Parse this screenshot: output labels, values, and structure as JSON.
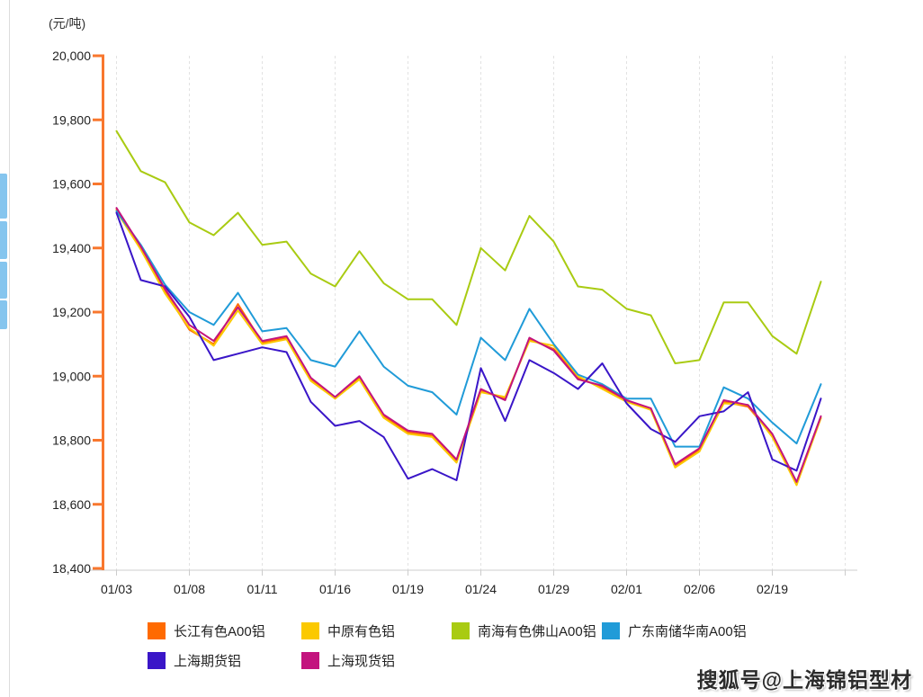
{
  "page": {
    "unit_label": "(元/吨)",
    "watermark": "搜狐号@上海锦铝型材"
  },
  "chart_data": {
    "type": "line",
    "title": "",
    "ylabel": "(元/吨)",
    "ylim": [
      18400,
      20000
    ],
    "ytick_step": 200,
    "ytick_labels": [
      "20,000",
      "19,800",
      "19,600",
      "19,400",
      "19,200",
      "19,000",
      "18,800",
      "18,600",
      "18,400"
    ],
    "yticks": [
      20000,
      19800,
      19600,
      19400,
      19200,
      19000,
      18800,
      18600,
      18400
    ],
    "grid": "vertical-dashed",
    "legend_position": "bottom-left",
    "axis_color": "#f8772e",
    "gridline_color": "#e2e2e2",
    "baseline_color": "#cccccc",
    "text_color": "#222222",
    "x": [
      "01/03",
      "01/04",
      "01/05",
      "01/08",
      "01/09",
      "01/10",
      "01/11",
      "01/12",
      "01/15",
      "01/16",
      "01/17",
      "01/18",
      "01/19",
      "01/22",
      "01/23",
      "01/24",
      "01/25",
      "01/26",
      "01/29",
      "01/30",
      "01/31",
      "02/01",
      "02/02",
      "02/05",
      "02/06",
      "02/07",
      "02/08",
      "02/19",
      "02/20",
      "02/21"
    ],
    "xtick_labels": [
      "01/03",
      "01/08",
      "01/11",
      "01/16",
      "01/19",
      "01/24",
      "01/29",
      "02/01",
      "02/06",
      "02/19"
    ],
    "xtick_every": 3,
    "series": [
      {
        "id": "changjiang-a00-al",
        "name": "长江有色A00铝",
        "color": "#ff6a00",
        "values": [
          19520,
          19400,
          19265,
          19145,
          19100,
          19225,
          19105,
          19120,
          18990,
          18930,
          18995,
          18875,
          18825,
          18815,
          18735,
          18955,
          18930,
          19115,
          19085,
          18995,
          18965,
          18925,
          18895,
          18720,
          18770,
          18920,
          18905,
          18815,
          18665,
          18870
        ]
      },
      {
        "id": "zhongyuan-al",
        "name": "中原有色铝",
        "color": "#fbc900",
        "values": [
          19515,
          19395,
          19258,
          19150,
          19095,
          19205,
          19100,
          19115,
          18985,
          18930,
          18990,
          18870,
          18820,
          18810,
          18730,
          18950,
          18935,
          19110,
          19095,
          19000,
          18960,
          18920,
          18895,
          18715,
          18765,
          18915,
          18910,
          18810,
          18660,
          18870
        ]
      },
      {
        "id": "nanhai-foshan-a00-al",
        "name": "南海有色佛山A00铝",
        "color": "#a9cb12",
        "values": [
          19765,
          19640,
          19605,
          19480,
          19440,
          19510,
          19410,
          19420,
          19320,
          19280,
          19390,
          19290,
          19240,
          19240,
          19160,
          19400,
          19330,
          19500,
          19420,
          19280,
          19270,
          19210,
          19190,
          19040,
          19050,
          19230,
          19230,
          19125,
          19070,
          19295
        ]
      },
      {
        "id": "guangdong-nanchu-a00-al",
        "name": "广东南储华南A00铝",
        "color": "#209bd8",
        "values": [
          19515,
          19410,
          19285,
          19200,
          19160,
          19260,
          19140,
          19150,
          19050,
          19030,
          19140,
          19030,
          18970,
          18950,
          18880,
          19120,
          19050,
          19210,
          19100,
          19005,
          18975,
          18930,
          18930,
          18780,
          18780,
          18965,
          18930,
          18855,
          18790,
          18975
        ]
      },
      {
        "id": "shanghai-futures-al",
        "name": "上海期货铝",
        "color": "#3a16c8",
        "values": [
          19510,
          19300,
          19280,
          19185,
          19050,
          19070,
          19090,
          19075,
          18920,
          18845,
          18860,
          18810,
          18680,
          18710,
          18675,
          19025,
          18860,
          19050,
          19010,
          18960,
          19040,
          18915,
          18835,
          18795,
          18875,
          18890,
          18950,
          18740,
          18705,
          18930
        ]
      },
      {
        "id": "shanghai-spot-al",
        "name": "上海现货铝",
        "color": "#c3137e",
        "values": [
          19525,
          19405,
          19272,
          19160,
          19110,
          19215,
          19110,
          19125,
          18995,
          18935,
          19000,
          18880,
          18830,
          18820,
          18740,
          18960,
          18925,
          19120,
          19080,
          18990,
          18970,
          18925,
          18900,
          18725,
          18775,
          18925,
          18910,
          18820,
          18670,
          18875
        ]
      }
    ]
  }
}
